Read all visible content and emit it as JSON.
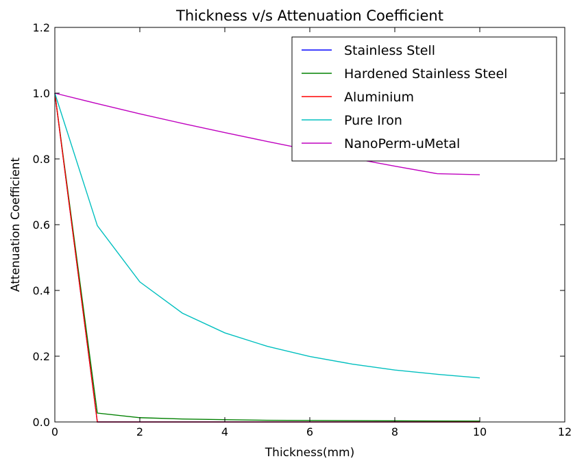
{
  "chart_data": {
    "type": "line",
    "title": "Thickness v/s Attenuation Coefficient",
    "xlabel": "Thickness(mm)",
    "ylabel": "Attenuation Coefficient",
    "xlim": [
      0,
      12
    ],
    "ylim": [
      0,
      1.2
    ],
    "xticks": [
      "0",
      "2",
      "4",
      "6",
      "8",
      "10",
      "12"
    ],
    "yticks": [
      "0.0",
      "0.2",
      "0.4",
      "0.6",
      "0.8",
      "1.0",
      "1.2"
    ],
    "grid": false,
    "legend_position": "top-right",
    "x": [
      0,
      1,
      2,
      3,
      4,
      5,
      6,
      7,
      8,
      9,
      10
    ],
    "series": [
      {
        "name": "Stainless Stell",
        "color": "#0000ff",
        "values": [
          1.0,
          0.0,
          0.0,
          0.0,
          0.0,
          0.0,
          0.0,
          0.0,
          0.0,
          0.0,
          0.0
        ]
      },
      {
        "name": "Hardened Stainless Steel",
        "color": "#008000",
        "values": [
          1.0,
          0.027,
          0.013,
          0.009,
          0.007,
          0.005,
          0.0045,
          0.004,
          0.0035,
          0.003,
          0.0027
        ]
      },
      {
        "name": "Aluminium",
        "color": "#ff0000",
        "values": [
          1.0,
          0.0,
          0.0,
          0.0,
          0.0,
          0.0,
          0.0,
          0.0,
          0.0,
          0.0,
          0.0
        ]
      },
      {
        "name": "Pure Iron",
        "color": "#00bfbf",
        "values": [
          1.0,
          0.597,
          0.426,
          0.331,
          0.271,
          0.23,
          0.199,
          0.176,
          0.158,
          0.145,
          0.134
        ]
      },
      {
        "name": "NanoPerm-uMetal",
        "color": "#bf00bf",
        "values": [
          1.0,
          0.968,
          0.937,
          0.908,
          0.88,
          0.853,
          0.827,
          0.802,
          0.778,
          0.755,
          0.752
        ]
      }
    ]
  }
}
